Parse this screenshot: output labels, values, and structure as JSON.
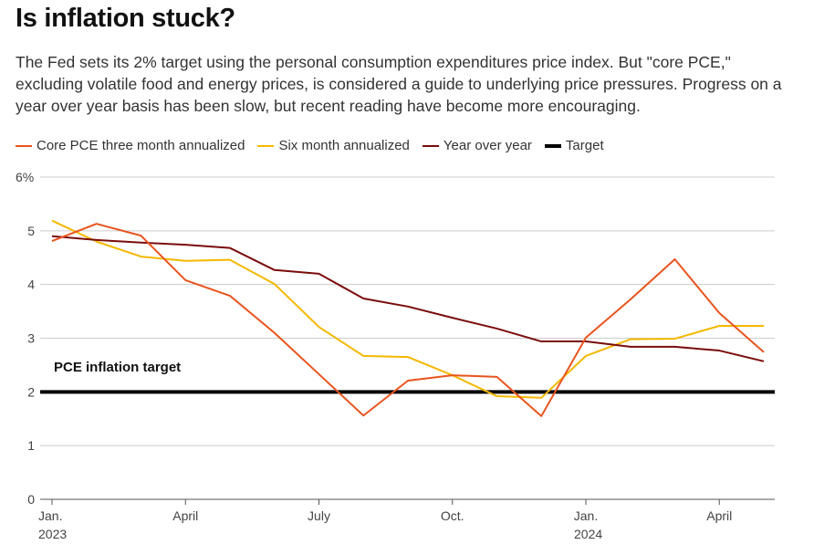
{
  "title": "Is inflation stuck?",
  "subtitle": "The Fed sets its 2% target using the personal consumption expenditures price index. But \"core PCE,\" excluding volatile food and energy prices, is considered a guide to underlying price pressures. Progress on a year over year basis has been slow, but recent reading have become more encouraging.",
  "chart_data": {
    "type": "line",
    "x": [
      "2023-01",
      "2023-02",
      "2023-03",
      "2023-04",
      "2023-05",
      "2023-06",
      "2023-07",
      "2023-08",
      "2023-09",
      "2023-10",
      "2023-11",
      "2023-12",
      "2024-01",
      "2024-02",
      "2024-03",
      "2024-04",
      "2024-05"
    ],
    "x_ticks": [
      {
        "label": "Jan.",
        "sub": "2023",
        "i": 0
      },
      {
        "label": "April",
        "sub": "",
        "i": 3
      },
      {
        "label": "July",
        "sub": "",
        "i": 6
      },
      {
        "label": "Oct.",
        "sub": "",
        "i": 9
      },
      {
        "label": "Jan.",
        "sub": "2024",
        "i": 12
      },
      {
        "label": "April",
        "sub": "",
        "i": 15
      }
    ],
    "y_ticks": [
      "0",
      "1",
      "2",
      "3",
      "4",
      "5",
      "6%"
    ],
    "ylim": [
      0,
      6
    ],
    "grid": true,
    "legend_placement": "top-left",
    "series": [
      {
        "name": "Core PCE three month annualized",
        "color": "#e8541e",
        "width": 2,
        "values": [
          4.81,
          5.13,
          4.91,
          4.08,
          3.79,
          3.1,
          2.33,
          1.56,
          2.21,
          2.31,
          2.28,
          1.55,
          3.01,
          3.72,
          4.47,
          3.47,
          2.74
        ]
      },
      {
        "name": "Six month annualized",
        "color": "#f5b800",
        "width": 2,
        "values": [
          5.19,
          4.8,
          4.52,
          4.44,
          4.46,
          4.01,
          3.21,
          2.67,
          2.65,
          2.31,
          1.92,
          1.89,
          2.67,
          2.98,
          2.99,
          3.23,
          3.23
        ]
      },
      {
        "name": "Year over year",
        "color": "#7a0c0c",
        "width": 2,
        "values": [
          4.9,
          4.83,
          4.78,
          4.74,
          4.68,
          4.27,
          4.2,
          3.74,
          3.59,
          3.38,
          3.18,
          2.94,
          2.94,
          2.84,
          2.84,
          2.77,
          2.57
        ]
      },
      {
        "name": "Target",
        "color": "#000000",
        "width": 4,
        "values": [
          2,
          2,
          2,
          2,
          2,
          2,
          2,
          2,
          2,
          2,
          2,
          2,
          2,
          2,
          2,
          2,
          2
        ]
      }
    ],
    "annotation": "PCE inflation target"
  }
}
